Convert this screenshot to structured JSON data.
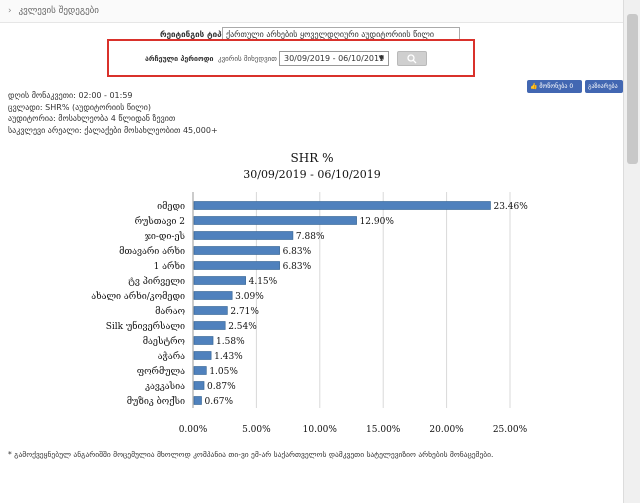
{
  "breadcrumb": {
    "arrow": "›",
    "label": "კვლევის შედეგები"
  },
  "filters": {
    "indicator_label": "რეიტინგის ტიპი",
    "indicator_value": "ქართული არხების ყოველდღიური აუდიტორიის წილი",
    "period_label": "არჩეული პერიოდი",
    "period_sub": "კვირის მიხედვით",
    "period_value": "30/09/2019 - 06/10/2019",
    "search_icon": "search-icon"
  },
  "social": {
    "like_label": "მოწონება 0",
    "share_label": "გაზიარება"
  },
  "info_lines": [
    "დღის მონაკვეთი: 02:00 - 01:59",
    "ცვლადი: SHR% (აუდიტორიის წილი)",
    "აუდიტორია: მოსახლეობა 4 წლიდან ზევით",
    "საკვლევი არეალი: ქალაქები მოსახლეობით 45,000+"
  ],
  "chart_data": {
    "type": "bar",
    "orientation": "horizontal",
    "title": "SHR %",
    "subtitle": "30/09/2019 - 06/10/2019",
    "categories": [
      "იმედი",
      "რუსთავი 2",
      "ჯი-დი-ეს",
      "მთავარი არხი",
      "1 არხი",
      "ტვ პირველი",
      "ახალი არხი/კომედი",
      "მარაო",
      "Silk უნივერსალი",
      "მაესტრო",
      "აჭარა",
      "ფორმულა",
      "კავკასია",
      "მუზიკ ბოქსი"
    ],
    "values": [
      23.46,
      12.9,
      7.88,
      6.83,
      6.83,
      4.15,
      3.09,
      2.71,
      2.54,
      1.58,
      1.43,
      1.05,
      0.87,
      0.67
    ],
    "value_labels": [
      "23.46%",
      "12.90%",
      "7.88%",
      "6.83%",
      "6.83%",
      "4.15%",
      "3.09%",
      "2.71%",
      "2.54%",
      "1.58%",
      "1.43%",
      "1.05%",
      "0.87%",
      "0.67%"
    ],
    "xlim": [
      0,
      25
    ],
    "xticks": [
      0,
      5,
      10,
      15,
      20,
      25
    ],
    "xtick_labels": [
      "0.00%",
      "5.00%",
      "10.00%",
      "15.00%",
      "20.00%",
      "25.00%"
    ],
    "grid": true,
    "bar_color": "#4f81bd"
  },
  "footnote": "* გამოქვეყნებულ ანგარიშში მოცემულია მხოლოდ კომპანია თი-ვი ემ-არ საქართველოს დამკვეთი სატელევიზიო არხების მონაცემები."
}
